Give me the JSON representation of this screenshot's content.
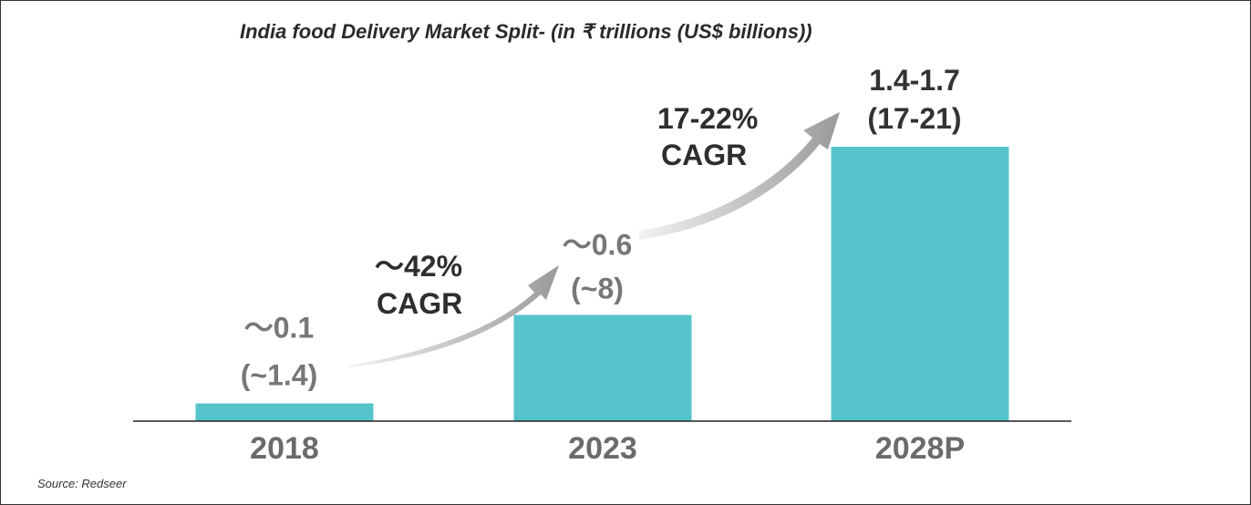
{
  "chart_data": {
    "type": "bar",
    "title": "India food Delivery Market Split- (in ₹ trillions (US$ billions))",
    "source": "Source: Redseer",
    "categories": [
      "2018",
      "2023",
      "2028P"
    ],
    "values": [
      0.1,
      0.6,
      1.55
    ],
    "data_labels": [
      {
        "line1": "～0.1",
        "line2": "(~1.4)"
      },
      {
        "line1": "～0.6",
        "line2": "(~8)"
      },
      {
        "line1": "1.4-1.7",
        "line2": "(17-21)"
      }
    ],
    "annotations": [
      {
        "line1": "～42%",
        "line2": "CAGR",
        "from": "2018",
        "to": "2023"
      },
      {
        "line1": "17-22%",
        "line2": "CAGR",
        "from": "2023",
        "to": "2028P"
      }
    ],
    "xlabel": "",
    "ylabel": "",
    "ylim": [
      0,
      1.55
    ],
    "grid": false,
    "bar_color": "#55c4cb"
  }
}
